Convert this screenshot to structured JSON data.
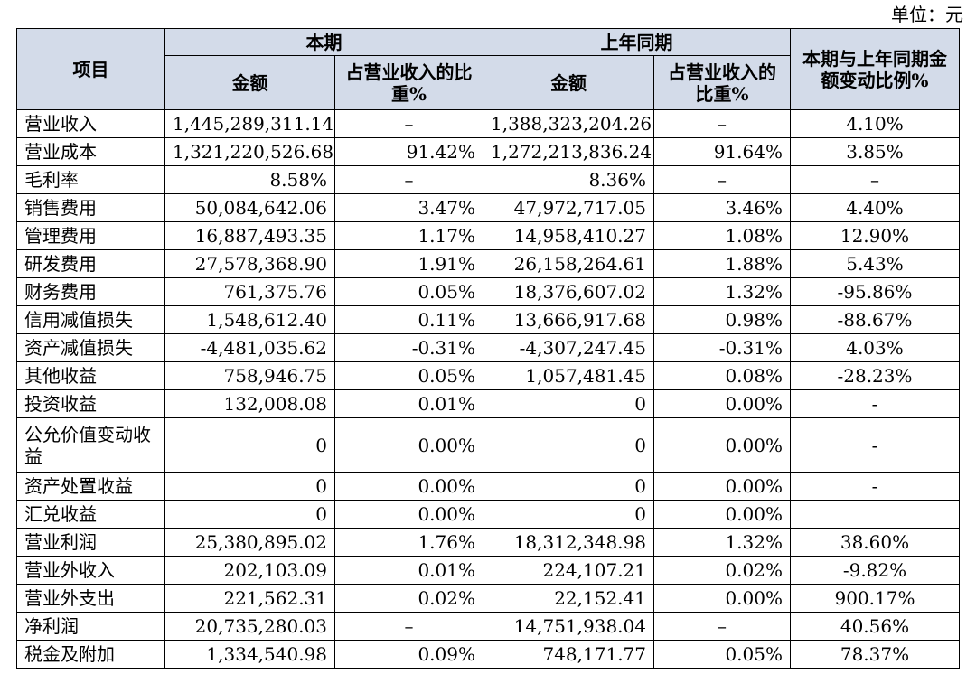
{
  "unit_label": "单位：元",
  "headers": {
    "item": "项目",
    "current": "本期",
    "prior": "上年同期",
    "change": "本期与上年同期金额变动比例%",
    "amount": "金额",
    "ratio": "占营业收入的比重%"
  },
  "rows": [
    {
      "label": "营业收入",
      "cur_amt": "1,445,289,311.14",
      "cur_pct": "–",
      "prev_amt": "1,388,323,204.26",
      "prev_pct": "–",
      "change": "4.10%"
    },
    {
      "label": "营业成本",
      "cur_amt": "1,321,220,526.68",
      "cur_pct": "91.42%",
      "prev_amt": "1,272,213,836.24",
      "prev_pct": "91.64%",
      "change": "3.85%"
    },
    {
      "label": "毛利率",
      "cur_amt": "8.58%",
      "cur_pct": "–",
      "prev_amt": "8.36%",
      "prev_pct": "–",
      "change": "–"
    },
    {
      "label": "销售费用",
      "cur_amt": "50,084,642.06",
      "cur_pct": "3.47%",
      "prev_amt": "47,972,717.05",
      "prev_pct": "3.46%",
      "change": "4.40%"
    },
    {
      "label": "管理费用",
      "cur_amt": "16,887,493.35",
      "cur_pct": "1.17%",
      "prev_amt": "14,958,410.27",
      "prev_pct": "1.08%",
      "change": "12.90%"
    },
    {
      "label": "研发费用",
      "cur_amt": "27,578,368.90",
      "cur_pct": "1.91%",
      "prev_amt": "26,158,264.61",
      "prev_pct": "1.88%",
      "change": "5.43%"
    },
    {
      "label": "财务费用",
      "cur_amt": "761,375.76",
      "cur_pct": "0.05%",
      "prev_amt": "18,376,607.02",
      "prev_pct": "1.32%",
      "change": "-95.86%"
    },
    {
      "label": "信用减值损失",
      "cur_amt": "1,548,612.40",
      "cur_pct": "0.11%",
      "prev_amt": "13,666,917.68",
      "prev_pct": "0.98%",
      "change": "-88.67%"
    },
    {
      "label": "资产减值损失",
      "cur_amt": "-4,481,035.62",
      "cur_pct": "-0.31%",
      "prev_amt": "-4,307,247.45",
      "prev_pct": "-0.31%",
      "change": "4.03%"
    },
    {
      "label": "其他收益",
      "cur_amt": "758,946.75",
      "cur_pct": "0.05%",
      "prev_amt": "1,057,481.45",
      "prev_pct": "0.08%",
      "change": "-28.23%"
    },
    {
      "label": "投资收益",
      "cur_amt": "132,008.08",
      "cur_pct": "0.01%",
      "prev_amt": "0",
      "prev_pct": "0.00%",
      "change": "-"
    },
    {
      "label": "公允价值变动收益",
      "cur_amt": "0",
      "cur_pct": "0.00%",
      "prev_amt": "0",
      "prev_pct": "0.00%",
      "change": "-"
    },
    {
      "label": "资产处置收益",
      "cur_amt": "0",
      "cur_pct": "0.00%",
      "prev_amt": "0",
      "prev_pct": "0.00%",
      "change": "-"
    },
    {
      "label": "汇兑收益",
      "cur_amt": "0",
      "cur_pct": "0.00%",
      "prev_amt": "0",
      "prev_pct": "0.00%",
      "change": ""
    },
    {
      "label": "营业利润",
      "cur_amt": "25,380,895.02",
      "cur_pct": "1.76%",
      "prev_amt": "18,312,348.98",
      "prev_pct": "1.32%",
      "change": "38.60%"
    },
    {
      "label": "营业外收入",
      "cur_amt": "202,103.09",
      "cur_pct": "0.01%",
      "prev_amt": "224,107.21",
      "prev_pct": "0.02%",
      "change": "-9.82%"
    },
    {
      "label": "营业外支出",
      "cur_amt": "221,562.31",
      "cur_pct": "0.02%",
      "prev_amt": "22,152.41",
      "prev_pct": "0.00%",
      "change": "900.17%"
    },
    {
      "label": "净利润",
      "cur_amt": "20,735,280.03",
      "cur_pct": "–",
      "prev_amt": "14,751,938.04",
      "prev_pct": "–",
      "change": "40.56%"
    },
    {
      "label": "税金及附加",
      "cur_amt": "1,334,540.98",
      "cur_pct": "0.09%",
      "prev_amt": "748,171.77",
      "prev_pct": "0.05%",
      "change": "78.37%"
    }
  ]
}
